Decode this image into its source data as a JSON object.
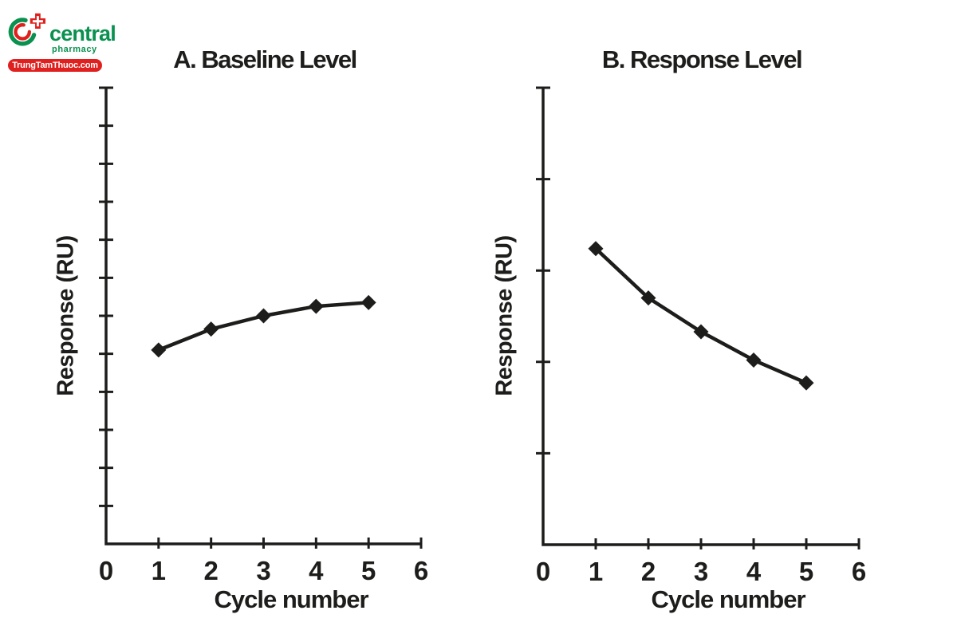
{
  "page": {
    "background": "#ffffff",
    "ink": "#1d1d1b"
  },
  "logo": {
    "brand": "central",
    "tagline": "pharmacy",
    "badge": "TrungTamThuoc.com",
    "green": "#0a9150",
    "red": "#e0201e"
  },
  "chart_data": [
    {
      "type": "line",
      "title": "A. Baseline Level",
      "xlabel": "Cycle number",
      "ylabel": "Response (RU)",
      "x": [
        1,
        2,
        3,
        4,
        5
      ],
      "y": [
        5.1,
        5.65,
        6.0,
        6.25,
        6.35
      ],
      "xlim": [
        0,
        6
      ],
      "ylim": [
        0,
        12
      ],
      "x_ticks": [
        0,
        1,
        2,
        3,
        4,
        5,
        6
      ],
      "y_tick_count": 12,
      "y_ticks_labeled": false,
      "grid": false,
      "legend": false,
      "marker": "diamond",
      "series_color": "#1d1d1b"
    },
    {
      "type": "line",
      "title": "B. Response Level",
      "xlabel": "Cycle number",
      "ylabel": "Response (RU)",
      "x": [
        1,
        2,
        3,
        4,
        5
      ],
      "y": [
        3.24,
        2.7,
        2.33,
        2.02,
        1.77
      ],
      "xlim": [
        0,
        6
      ],
      "ylim": [
        0,
        5
      ],
      "x_ticks": [
        0,
        1,
        2,
        3,
        4,
        5,
        6
      ],
      "y_tick_count": 5,
      "y_ticks_labeled": false,
      "grid": false,
      "legend": false,
      "marker": "diamond",
      "series_color": "#1d1d1b"
    }
  ]
}
